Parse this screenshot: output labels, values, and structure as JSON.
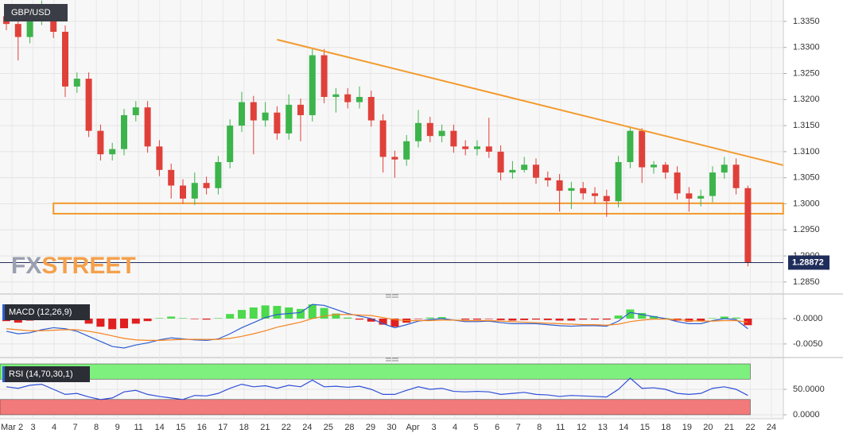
{
  "chart_data": [
    {
      "type": "candlestick",
      "title": "GBP/USD",
      "categories": [
        "Mar 2",
        "3",
        "4",
        "7",
        "8",
        "9",
        "11",
        "14",
        "15",
        "16",
        "17",
        "18",
        "21",
        "22",
        "24",
        "25",
        "28",
        "29",
        "30",
        "Apr",
        "3",
        "4",
        "5",
        "6",
        "7",
        "8",
        "11",
        "12",
        "13",
        "14",
        "15",
        "18",
        "19",
        "20",
        "21",
        "22",
        "24"
      ],
      "ohlc": [
        [
          1.336,
          1.3372,
          1.3333,
          1.3345
        ],
        [
          1.3345,
          1.3357,
          1.3275,
          1.332
        ],
        [
          1.332,
          1.3367,
          1.3308,
          1.3355
        ],
        [
          1.3355,
          1.339,
          1.3343,
          1.337
        ],
        [
          1.337,
          1.3382,
          1.3318,
          1.333
        ],
        [
          1.333,
          1.3342,
          1.3205,
          1.3225
        ],
        [
          1.3225,
          1.3252,
          1.3213,
          1.324
        ],
        [
          1.324,
          1.3252,
          1.3128,
          1.314
        ],
        [
          1.314,
          1.3152,
          1.3083,
          1.3095
        ],
        [
          1.3095,
          1.3117,
          1.3083,
          1.3105
        ],
        [
          1.3105,
          1.3182,
          1.3093,
          1.317
        ],
        [
          1.317,
          1.3197,
          1.3158,
          1.3185
        ],
        [
          1.3185,
          1.3197,
          1.3098,
          1.311
        ],
        [
          1.311,
          1.3122,
          1.3053,
          1.3065
        ],
        [
          1.3065,
          1.3077,
          1.301,
          1.3035
        ],
        [
          1.3035,
          1.3047,
          1.3,
          1.301
        ],
        [
          1.301,
          1.306,
          1.2998,
          1.304
        ],
        [
          1.304,
          1.3052,
          1.3018,
          1.303
        ],
        [
          1.303,
          1.3092,
          1.3018,
          1.308
        ],
        [
          1.308,
          1.3162,
          1.3068,
          1.315
        ],
        [
          1.315,
          1.3215,
          1.3138,
          1.3195
        ],
        [
          1.3195,
          1.3207,
          1.3095,
          1.316
        ],
        [
          1.316,
          1.3195,
          1.3148,
          1.3175
        ],
        [
          1.3175,
          1.3187,
          1.3123,
          1.3135
        ],
        [
          1.3135,
          1.321,
          1.3123,
          1.319
        ],
        [
          1.319,
          1.3202,
          1.312,
          1.317
        ],
        [
          1.317,
          1.3297,
          1.3158,
          1.3285
        ],
        [
          1.3285,
          1.3297,
          1.3193,
          1.3205
        ],
        [
          1.3205,
          1.3222,
          1.3175,
          1.321
        ],
        [
          1.321,
          1.3222,
          1.3183,
          1.3195
        ],
        [
          1.3195,
          1.3225,
          1.3183,
          1.3205
        ],
        [
          1.3205,
          1.3217,
          1.3148,
          1.316
        ],
        [
          1.316,
          1.3172,
          1.306,
          1.309
        ],
        [
          1.309,
          1.3102,
          1.305,
          1.3085
        ],
        [
          1.3085,
          1.3132,
          1.3073,
          1.312
        ],
        [
          1.312,
          1.318,
          1.3108,
          1.3155
        ],
        [
          1.3155,
          1.3167,
          1.3118,
          1.313
        ],
        [
          1.313,
          1.3152,
          1.3118,
          1.314
        ],
        [
          1.314,
          1.3152,
          1.3098,
          1.311
        ],
        [
          1.311,
          1.3122,
          1.3093,
          1.3105
        ],
        [
          1.3105,
          1.3122,
          1.3093,
          1.311
        ],
        [
          1.311,
          1.3165,
          1.3088,
          1.31
        ],
        [
          1.31,
          1.3112,
          1.3045,
          1.306
        ],
        [
          1.306,
          1.3082,
          1.3048,
          1.3065
        ],
        [
          1.3065,
          1.309,
          1.306,
          1.3075
        ],
        [
          1.3075,
          1.3087,
          1.3038,
          1.305
        ],
        [
          1.305,
          1.3062,
          1.3033,
          1.3045
        ],
        [
          1.3045,
          1.3057,
          1.2985,
          1.3025
        ],
        [
          1.3025,
          1.3042,
          1.299,
          1.303
        ],
        [
          1.303,
          1.3042,
          1.3008,
          1.302
        ],
        [
          1.302,
          1.3032,
          1.3,
          1.3015
        ],
        [
          1.3015,
          1.3027,
          1.2975,
          1.3005
        ],
        [
          1.3005,
          1.3092,
          1.2993,
          1.308
        ],
        [
          1.308,
          1.3148,
          1.3068,
          1.314
        ],
        [
          1.314,
          1.3145,
          1.304,
          1.307
        ],
        [
          1.307,
          1.3082,
          1.3058,
          1.3075
        ],
        [
          1.3075,
          1.308,
          1.3048,
          1.306
        ],
        [
          1.306,
          1.3072,
          1.3008,
          1.302
        ],
        [
          1.302,
          1.3032,
          1.2985,
          1.301
        ],
        [
          1.301,
          1.3027,
          1.2995,
          1.3015
        ],
        [
          1.3015,
          1.3072,
          1.3003,
          1.306
        ],
        [
          1.306,
          1.309,
          1.3048,
          1.3075
        ],
        [
          1.3075,
          1.3087,
          1.3018,
          1.303
        ],
        [
          1.303,
          1.3035,
          1.288,
          1.2887
        ]
      ],
      "up_color": "#3cb44b",
      "down_color": "#e0403a",
      "ylim": [
        1.283,
        1.3391
      ],
      "yticks": [
        {
          "value": 1.285,
          "label": "1.2850"
        },
        {
          "value": 1.29,
          "label": "1.2900"
        },
        {
          "value": 1.295,
          "label": "1.2950"
        },
        {
          "value": 1.3,
          "label": "1.3000"
        },
        {
          "value": 1.305,
          "label": "1.3050"
        },
        {
          "value": 1.31,
          "label": "1.3100"
        },
        {
          "value": 1.315,
          "label": "1.3150"
        },
        {
          "value": 1.32,
          "label": "1.3200"
        },
        {
          "value": 1.325,
          "label": "1.3250"
        },
        {
          "value": 1.33,
          "label": "1.3300"
        },
        {
          "value": 1.335,
          "label": "1.3350"
        }
      ],
      "grid": true,
      "last_price": 1.28872,
      "last_price_color": "#1f2d5a",
      "annotation_color": "#f39a2e",
      "trendline": {
        "x": [
          23,
          66
        ],
        "y": [
          1.3315,
          1.3074
        ]
      },
      "support_zone": {
        "x": [
          4,
          66
        ],
        "y": [
          1.2981,
          1.3001
        ]
      },
      "watermark": {
        "left": "FX",
        "right": "STREET"
      }
    },
    {
      "type": "macd",
      "title": "MACD (12,26,9)",
      "series": [
        {
          "color": "#2f5fd0",
          "values": [
            -0.0025,
            -0.003,
            -0.0028,
            -0.0022,
            -0.0018,
            -0.002,
            -0.0025,
            -0.0035,
            -0.0045,
            -0.0055,
            -0.0058,
            -0.0052,
            -0.0048,
            -0.0042,
            -0.0038,
            -0.004,
            -0.0042,
            -0.0043,
            -0.004,
            -0.003,
            -0.0018,
            -0.0008,
            0.0002,
            0.0008,
            0.001,
            0.0012,
            0.0028,
            0.0026,
            0.0018,
            0.001,
            0.0005,
            0.0,
            -0.001,
            -0.0018,
            -0.0012,
            -0.0005,
            -0.0002,
            0.0,
            -0.0003,
            -0.0006,
            -0.0006,
            -0.0005,
            -0.0008,
            -0.001,
            -0.001,
            -0.001,
            -0.0012,
            -0.0014,
            -0.0015,
            -0.0014,
            -0.0014,
            -0.0015,
            -0.0005,
            0.0012,
            0.0008,
            0.0004,
            0.0,
            -0.0006,
            -0.001,
            -0.001,
            -0.0004,
            0.0,
            -0.0002,
            -0.002
          ]
        },
        {
          "color": "#f5841f",
          "values": [
            -0.002,
            -0.0022,
            -0.0024,
            -0.0024,
            -0.0023,
            -0.0022,
            -0.0022,
            -0.0025,
            -0.0029,
            -0.0034,
            -0.0039,
            -0.0042,
            -0.0043,
            -0.0043,
            -0.0042,
            -0.0041,
            -0.0041,
            -0.0041,
            -0.0041,
            -0.0039,
            -0.0035,
            -0.003,
            -0.0024,
            -0.0017,
            -0.0012,
            -0.0007,
            0.0,
            0.0005,
            0.0008,
            0.0008,
            0.0007,
            0.0006,
            0.0002,
            -0.0002,
            -0.0004,
            -0.0004,
            -0.0004,
            -0.0003,
            -0.0003,
            -0.0004,
            -0.0004,
            -0.0004,
            -0.0005,
            -0.0006,
            -0.0007,
            -0.0008,
            -0.0009,
            -0.001,
            -0.0011,
            -0.0012,
            -0.0012,
            -0.0013,
            -0.0011,
            -0.0006,
            -0.0003,
            -0.0001,
            -0.0001,
            -0.0002,
            -0.0004,
            -0.0005,
            -0.0005,
            -0.0004,
            -0.0004,
            -0.0007
          ]
        }
      ],
      "histogram": {
        "up_color": "#4cd94c",
        "down_color": "#e02020",
        "values": [
          -0.0005,
          -0.0008,
          -0.0004,
          0.0002,
          0.0005,
          0.0002,
          -0.0003,
          -0.001,
          -0.0016,
          -0.0021,
          -0.0019,
          -0.001,
          -0.0005,
          0.0001,
          0.0004,
          0.0001,
          -0.0001,
          -0.0002,
          0.0001,
          0.0009,
          0.0017,
          0.0022,
          0.0026,
          0.0025,
          0.0022,
          0.0019,
          0.0028,
          0.0021,
          0.001,
          0.0002,
          -0.0002,
          -0.0006,
          -0.0012,
          -0.0016,
          -0.0008,
          -0.0001,
          0.0002,
          0.0003,
          0.0,
          -0.0002,
          -0.0002,
          -0.0001,
          -0.0003,
          -0.0004,
          -0.0003,
          -0.0002,
          -0.0003,
          -0.0004,
          -0.0004,
          -0.0002,
          -0.0002,
          -0.0002,
          0.0006,
          0.0018,
          0.0011,
          0.0005,
          0.0001,
          -0.0004,
          -0.0006,
          -0.0005,
          0.0001,
          0.0004,
          0.0002,
          -0.0013
        ]
      },
      "ylim": [
        -0.0069,
        0.0036
      ],
      "yticks": [
        {
          "value": 0,
          "label": "-0.0000"
        },
        {
          "value": -0.005,
          "label": "-0.0050"
        }
      ]
    },
    {
      "type": "rsi",
      "title": "RSI (14,70,30,1)",
      "color": "#2f4fd8",
      "values": [
        55,
        52,
        58,
        60,
        50,
        40,
        42,
        35,
        30,
        33,
        45,
        48,
        40,
        36,
        33,
        30,
        38,
        37,
        42,
        52,
        60,
        55,
        57,
        52,
        58,
        55,
        68,
        55,
        56,
        54,
        56,
        50,
        40,
        40,
        48,
        55,
        50,
        52,
        46,
        45,
        46,
        45,
        40,
        42,
        44,
        40,
        39,
        36,
        38,
        37,
        36,
        35,
        50,
        72,
        52,
        53,
        50,
        42,
        40,
        42,
        52,
        55,
        50,
        38
      ],
      "zones": [
        {
          "range": [
            70,
            100
          ],
          "color": "#7ef07e"
        },
        {
          "range": [
            0,
            30
          ],
          "color": "#f27a7a"
        }
      ],
      "ylim": [
        -4.7,
        104.7
      ],
      "yticks": [
        {
          "value": 50,
          "label": "50.0000"
        },
        {
          "value": 0,
          "label": "0.0000"
        }
      ]
    }
  ]
}
